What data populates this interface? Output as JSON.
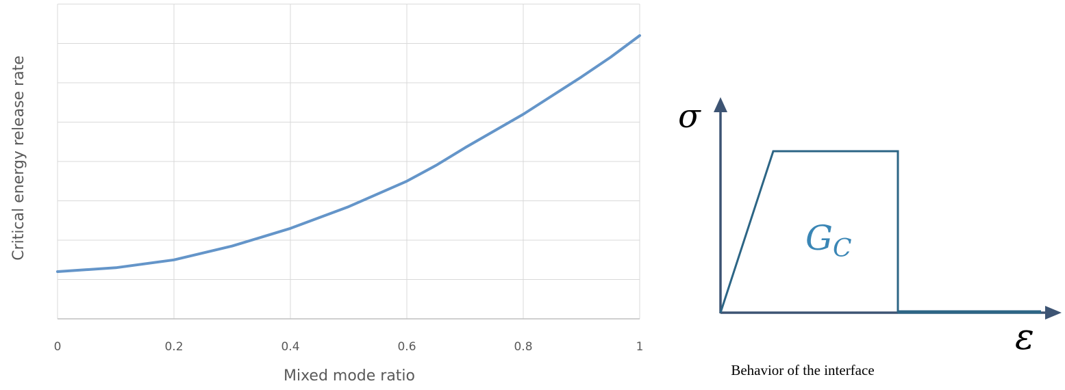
{
  "chart_data": [
    {
      "type": "line",
      "title": "",
      "xlabel": "Mixed mode ratio",
      "ylabel": "Critical energy release rate",
      "xlim": [
        0,
        1
      ],
      "ylim": [
        0,
        8
      ],
      "x_ticks": [
        "0",
        "0.2",
        "0.4",
        "0.6",
        "0.8",
        "1"
      ],
      "y_ticks_labeled": false,
      "grid": true,
      "series": [
        {
          "color": "#6495c9",
          "x": [
            0,
            0.1,
            0.2,
            0.3,
            0.4,
            0.5,
            0.6,
            0.65,
            0.7,
            0.8,
            0.9,
            0.95,
            1
          ],
          "y": [
            1.2,
            1.3,
            1.5,
            1.85,
            2.3,
            2.85,
            3.5,
            3.9,
            4.35,
            5.2,
            6.15,
            6.65,
            7.2
          ]
        }
      ]
    },
    {
      "type": "diagram",
      "title": "Behavior of the interface",
      "x_axis_symbol": "ε",
      "y_axis_symbol": "σ",
      "area_label": "G",
      "area_label_subscript": "C",
      "curve": "linear rise, constant plateau, sudden drop to zero",
      "axis_color": "#3d5473",
      "curve_color": "#2c6585",
      "label_color": "#3a86b5"
    }
  ]
}
